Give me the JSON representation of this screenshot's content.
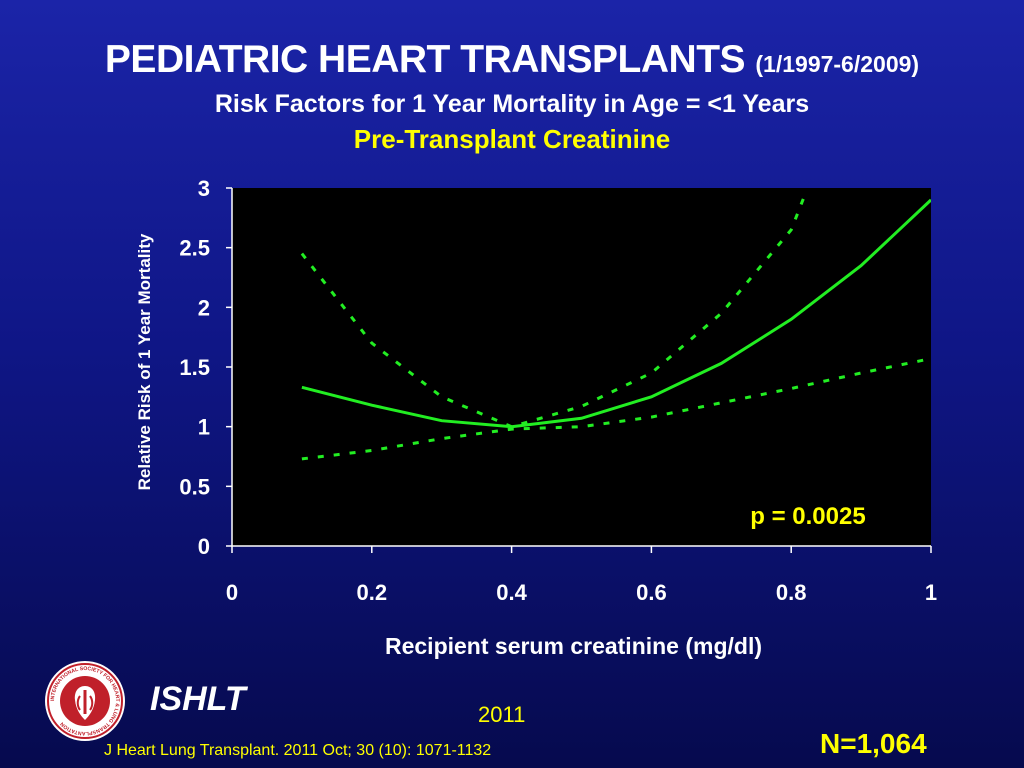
{
  "header": {
    "title": "PEDIATRIC HEART TRANSPLANTS",
    "date_range": "(1/1997-6/2009)",
    "subtitle": "Risk Factors for 1 Year Mortality in Age = <1 Years",
    "subtitle2": "Pre-Transplant Creatinine"
  },
  "footer": {
    "brand": "ISHLT",
    "year": "2011",
    "citation": "J Heart Lung Transplant. 2011 Oct; 30 (10): 1071-1132",
    "n_label": "N=1,064",
    "logo_text": "INTERNATIONAL SOCIETY FOR HEART & LUNG TRANSPLANTATION"
  },
  "colors": {
    "series": "#22ee22",
    "plot_background": "#000000",
    "axis_text": "#ffffff",
    "annotation": "#ffff00"
  },
  "chart_data": {
    "type": "line",
    "xlabel": "Recipient serum creatinine (mg/dl)",
    "ylabel": "Relative Risk of 1 Year Mortality",
    "xlim": [
      0,
      1
    ],
    "ylim": [
      0,
      3
    ],
    "x_ticks": [
      "0",
      "0.2",
      "0.4",
      "0.6",
      "0.8",
      "1"
    ],
    "y_ticks": [
      "0",
      "0.5",
      "1",
      "1.5",
      "2",
      "2.5",
      "3"
    ],
    "grid": false,
    "annotation": "p = 0.0025",
    "series": [
      {
        "style": "solid",
        "x": [
          0.1,
          0.2,
          0.3,
          0.4,
          0.5,
          0.6,
          0.7,
          0.8,
          0.9,
          1.0
        ],
        "y": [
          1.33,
          1.18,
          1.05,
          1.0,
          1.07,
          1.25,
          1.53,
          1.9,
          2.35,
          2.9
        ]
      },
      {
        "style": "dashed",
        "x": [
          0.1,
          0.2,
          0.3,
          0.4,
          0.5,
          0.6,
          0.7,
          0.8,
          0.82
        ],
        "y": [
          2.45,
          1.7,
          1.25,
          1.0,
          1.17,
          1.45,
          1.95,
          2.65,
          2.95
        ]
      },
      {
        "style": "dashed",
        "x": [
          0.1,
          0.2,
          0.3,
          0.4,
          0.5,
          0.6,
          0.7,
          0.8,
          0.9,
          1.0
        ],
        "y": [
          0.73,
          0.8,
          0.9,
          0.98,
          1.0,
          1.08,
          1.2,
          1.32,
          1.45,
          1.57
        ]
      }
    ]
  }
}
